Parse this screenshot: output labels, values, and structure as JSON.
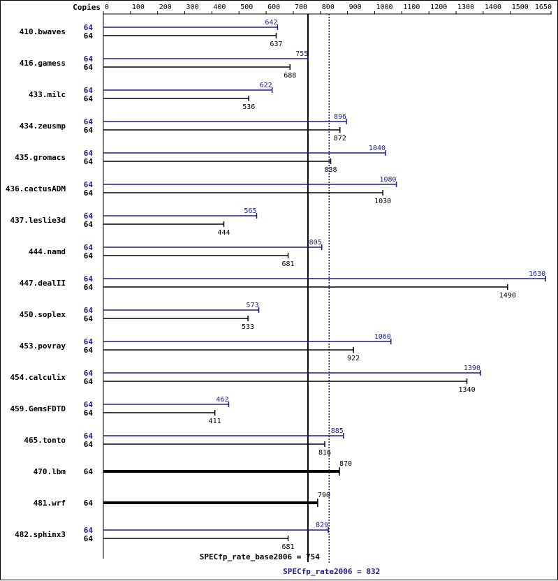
{
  "header": {
    "copies_label": "Copies"
  },
  "colors": {
    "base": "#000000",
    "peak": "#1c1c8c"
  },
  "chart_data": {
    "type": "bar",
    "orientation": "horizontal",
    "xlim": [
      0,
      1650
    ],
    "x_ticks": [
      0,
      100,
      200,
      300,
      400,
      500,
      600,
      700,
      800,
      900,
      1000,
      1100,
      1200,
      1300,
      1400,
      1500,
      1650
    ],
    "x_tick_labels": [
      "0",
      "100",
      "200",
      "300",
      "400",
      "500",
      "600",
      "700",
      "800",
      "900",
      "1000",
      "1100",
      "1200",
      "1300",
      "1400",
      "1500",
      "1650"
    ],
    "benchmarks": [
      {
        "name": "410.bwaves",
        "peak": {
          "copies": "64",
          "value": 642,
          "label": "642"
        },
        "base": {
          "copies": "64",
          "value": 637,
          "label": "637"
        }
      },
      {
        "name": "416.gamess",
        "peak": {
          "copies": "64",
          "value": 755,
          "label": "755"
        },
        "base": {
          "copies": "64",
          "value": 688,
          "label": "688"
        }
      },
      {
        "name": "433.milc",
        "peak": {
          "copies": "64",
          "value": 622,
          "label": "622"
        },
        "base": {
          "copies": "64",
          "value": 536,
          "label": "536"
        }
      },
      {
        "name": "434.zeusmp",
        "peak": {
          "copies": "64",
          "value": 896,
          "label": "896"
        },
        "base": {
          "copies": "64",
          "value": 872,
          "label": "872"
        }
      },
      {
        "name": "435.gromacs",
        "peak": {
          "copies": "64",
          "value": 1040,
          "label": "1040"
        },
        "base": {
          "copies": "64",
          "value": 838,
          "label": "838"
        }
      },
      {
        "name": "436.cactusADM",
        "peak": {
          "copies": "64",
          "value": 1080,
          "label": "1080"
        },
        "base": {
          "copies": "64",
          "value": 1030,
          "label": "1030"
        }
      },
      {
        "name": "437.leslie3d",
        "peak": {
          "copies": "64",
          "value": 565,
          "label": "565"
        },
        "base": {
          "copies": "64",
          "value": 444,
          "label": "444"
        }
      },
      {
        "name": "444.namd",
        "peak": {
          "copies": "64",
          "value": 805,
          "label": "805"
        },
        "base": {
          "copies": "64",
          "value": 681,
          "label": "681"
        }
      },
      {
        "name": "447.dealII",
        "peak": {
          "copies": "64",
          "value": 1630,
          "label": "1630"
        },
        "base": {
          "copies": "64",
          "value": 1490,
          "label": "1490"
        }
      },
      {
        "name": "450.soplex",
        "peak": {
          "copies": "64",
          "value": 573,
          "label": "573"
        },
        "base": {
          "copies": "64",
          "value": 533,
          "label": "533"
        }
      },
      {
        "name": "453.povray",
        "peak": {
          "copies": "64",
          "value": 1060,
          "label": "1060"
        },
        "base": {
          "copies": "64",
          "value": 922,
          "label": "922"
        }
      },
      {
        "name": "454.calculix",
        "peak": {
          "copies": "64",
          "value": 1390,
          "label": "1390"
        },
        "base": {
          "copies": "64",
          "value": 1340,
          "label": "1340"
        }
      },
      {
        "name": "459.GemsFDTD",
        "peak": {
          "copies": "64",
          "value": 462,
          "label": "462"
        },
        "base": {
          "copies": "64",
          "value": 411,
          "label": "411"
        }
      },
      {
        "name": "465.tonto",
        "peak": {
          "copies": "64",
          "value": 885,
          "label": "885"
        },
        "base": {
          "copies": "64",
          "value": 816,
          "label": "816"
        }
      },
      {
        "name": "470.lbm",
        "peak": null,
        "base": {
          "copies": "64",
          "value": 870,
          "label": "870"
        }
      },
      {
        "name": "481.wrf",
        "peak": null,
        "base": {
          "copies": "64",
          "value": 790,
          "label": "790"
        }
      },
      {
        "name": "482.sphinx3",
        "peak": {
          "copies": "64",
          "value": 829,
          "label": "829"
        },
        "base": {
          "copies": "64",
          "value": 681,
          "label": "681"
        }
      }
    ],
    "reference_lines": {
      "base": {
        "label": "SPECfp_rate_base2006 = 754",
        "value": 754
      },
      "peak": {
        "label": "SPECfp_rate2006 = 832",
        "value": 832
      }
    }
  }
}
